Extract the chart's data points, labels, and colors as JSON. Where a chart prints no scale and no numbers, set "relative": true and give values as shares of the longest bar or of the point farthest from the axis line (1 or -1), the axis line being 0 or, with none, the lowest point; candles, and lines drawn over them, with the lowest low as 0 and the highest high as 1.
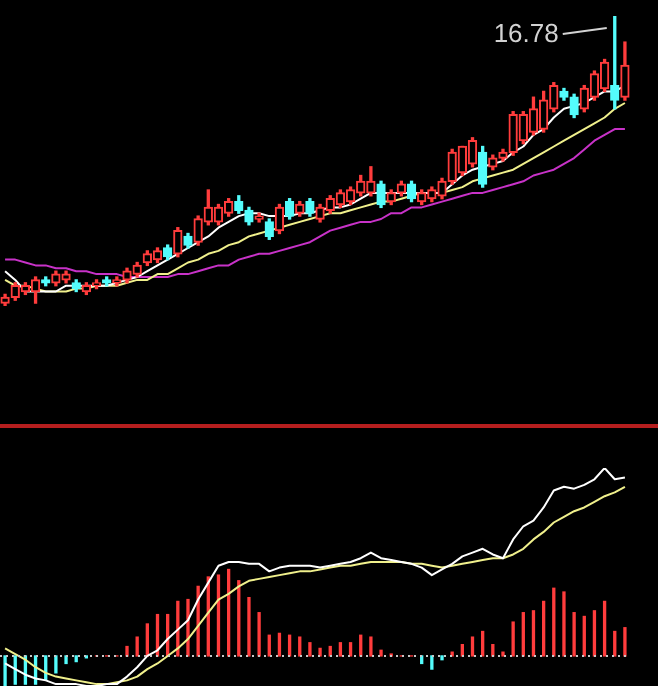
{
  "chart_data": [
    {
      "type": "candlestick",
      "relative": true,
      "categories": [
        null,
        null,
        null,
        null,
        null,
        null,
        null,
        null,
        null,
        null,
        null,
        null,
        null,
        null,
        null,
        null,
        null,
        null,
        null,
        null,
        null,
        null,
        null,
        null,
        null,
        null,
        null,
        null,
        null,
        null,
        null,
        null,
        null,
        null,
        null,
        null,
        null,
        null,
        null,
        null,
        null,
        null,
        null,
        null,
        null,
        null,
        null,
        null,
        null,
        null,
        null,
        null,
        null,
        null,
        null,
        null,
        null,
        null,
        null,
        null,
        null,
        null
      ],
      "ohlc": [
        [
          0.01,
          0.04,
          0,
          0.03
        ],
        [
          0.03,
          0.08,
          0.02,
          0.07
        ],
        [
          0.05,
          0.08,
          0.04,
          0.07
        ],
        [
          0.05,
          0.1,
          0.01,
          0.09
        ],
        [
          0.09,
          0.1,
          0.07,
          0.08
        ],
        [
          0.08,
          0.12,
          0.07,
          0.11
        ],
        [
          0.09,
          0.12,
          0.08,
          0.11
        ],
        [
          0.08,
          0.09,
          0.05,
          0.06
        ],
        [
          0.05,
          0.08,
          0.04,
          0.07
        ],
        [
          0.07,
          0.09,
          0.06,
          0.08
        ],
        [
          0.09,
          0.1,
          0.07,
          0.08
        ],
        [
          0.08,
          0.1,
          0.07,
          0.09
        ],
        [
          0.09,
          0.13,
          0.08,
          0.12
        ],
        [
          0.11,
          0.15,
          0.1,
          0.14
        ],
        [
          0.15,
          0.19,
          0.14,
          0.18
        ],
        [
          0.16,
          0.2,
          0.15,
          0.19
        ],
        [
          0.2,
          0.21,
          0.16,
          0.17
        ],
        [
          0.18,
          0.27,
          0.17,
          0.26
        ],
        [
          0.24,
          0.25,
          0.2,
          0.21
        ],
        [
          0.22,
          0.31,
          0.21,
          0.3
        ],
        [
          0.29,
          0.4,
          0.28,
          0.34
        ],
        [
          0.29,
          0.35,
          0.28,
          0.34
        ],
        [
          0.32,
          0.37,
          0.31,
          0.36
        ],
        [
          0.36,
          0.38,
          0.32,
          0.33
        ],
        [
          0.33,
          0.34,
          0.28,
          0.29
        ],
        [
          0.3,
          0.32,
          0.29,
          0.31
        ],
        [
          0.29,
          0.3,
          0.23,
          0.24
        ],
        [
          0.26,
          0.35,
          0.25,
          0.34
        ],
        [
          0.36,
          0.37,
          0.3,
          0.31
        ],
        [
          0.32,
          0.36,
          0.31,
          0.35
        ],
        [
          0.36,
          0.37,
          0.31,
          0.32
        ],
        [
          0.3,
          0.35,
          0.29,
          0.34
        ],
        [
          0.33,
          0.38,
          0.32,
          0.37
        ],
        [
          0.35,
          0.4,
          0.34,
          0.39
        ],
        [
          0.36,
          0.41,
          0.35,
          0.4
        ],
        [
          0.39,
          0.45,
          0.38,
          0.43
        ],
        [
          0.39,
          0.48,
          0.38,
          0.43
        ],
        [
          0.42,
          0.43,
          0.34,
          0.35
        ],
        [
          0.36,
          0.4,
          0.35,
          0.39
        ],
        [
          0.39,
          0.43,
          0.38,
          0.42
        ],
        [
          0.42,
          0.43,
          0.36,
          0.37
        ],
        [
          0.36,
          0.4,
          0.35,
          0.39
        ],
        [
          0.37,
          0.41,
          0.36,
          0.4
        ],
        [
          0.38,
          0.44,
          0.37,
          0.43
        ],
        [
          0.43,
          0.54,
          0.42,
          0.53
        ],
        [
          0.46,
          0.55,
          0.45,
          0.55
        ],
        [
          0.49,
          0.58,
          0.48,
          0.57
        ],
        [
          0.53,
          0.55,
          0.41,
          0.42
        ],
        [
          0.48,
          0.52,
          0.47,
          0.51
        ],
        [
          0.51,
          0.54,
          0.5,
          0.53
        ],
        [
          0.53,
          0.67,
          0.52,
          0.66
        ],
        [
          0.57,
          0.67,
          0.56,
          0.66
        ],
        [
          0.6,
          0.72,
          0.59,
          0.68
        ],
        [
          0.61,
          0.74,
          0.6,
          0.71
        ],
        [
          0.68,
          0.77,
          0.67,
          0.76
        ],
        [
          0.74,
          0.75,
          0.71,
          0.72
        ],
        [
          0.72,
          0.73,
          0.65,
          0.66
        ],
        [
          0.68,
          0.76,
          0.67,
          0.75
        ],
        [
          0.72,
          0.81,
          0.71,
          0.8
        ],
        [
          0.75,
          0.85,
          0.74,
          0.84
        ],
        [
          0.76,
          1,
          0.68,
          0.71
        ],
        [
          0.72,
          0.91,
          0.71,
          0.83
        ]
      ],
      "colors": [
        "#ff3c3c",
        "#ff3c3c",
        "#ff3c3c",
        "#ff3c3c",
        "#54fcfc",
        "#ff3c3c",
        "#ff3c3c",
        "#54fcfc",
        "#ff3c3c",
        "#ff3c3c",
        "#54fcfc",
        "#ff3c3c",
        "#ff3c3c",
        "#ff3c3c",
        "#ff3c3c",
        "#ff3c3c",
        "#54fcfc",
        "#ff3c3c",
        "#54fcfc",
        "#ff3c3c",
        "#ff3c3c",
        "#ff3c3c",
        "#ff3c3c",
        "#54fcfc",
        "#54fcfc",
        "#ff3c3c",
        "#54fcfc",
        "#ff3c3c",
        "#54fcfc",
        "#ff3c3c",
        "#54fcfc",
        "#ff3c3c",
        "#ff3c3c",
        "#ff3c3c",
        "#ff3c3c",
        "#ff3c3c",
        "#ff3c3c",
        "#54fcfc",
        "#ff3c3c",
        "#ff3c3c",
        "#54fcfc",
        "#ff3c3c",
        "#ff3c3c",
        "#ff3c3c",
        "#ff3c3c",
        "#ff3c3c",
        "#ff3c3c",
        "#54fcfc",
        "#ff3c3c",
        "#ff3c3c",
        "#ff3c3c",
        "#ff3c3c",
        "#ff3c3c",
        "#ff3c3c",
        "#ff3c3c",
        "#54fcfc",
        "#54fcfc",
        "#ff3c3c",
        "#ff3c3c",
        "#ff3c3c",
        "#54fcfc",
        "#ff3c3c"
      ],
      "series": [
        {
          "type": "line",
          "color": "#ffffff",
          "values": [
            0.12,
            0.09,
            0.05,
            0.05,
            0.05,
            0.05,
            0.07,
            0.07,
            0.07,
            0.07,
            0.07,
            0.08,
            0.09,
            0.1,
            0.12,
            0.14,
            0.16,
            0.18,
            0.2,
            0.22,
            0.24,
            0.27,
            0.29,
            0.31,
            0.32,
            0.32,
            0.31,
            0.31,
            0.31,
            0.32,
            0.32,
            0.33,
            0.34,
            0.34,
            0.35,
            0.37,
            0.39,
            0.39,
            0.39,
            0.39,
            0.39,
            0.39,
            0.39,
            0.39,
            0.42,
            0.45,
            0.47,
            0.48,
            0.49,
            0.5,
            0.53,
            0.55,
            0.59,
            0.61,
            0.65,
            0.68,
            0.69,
            0.7,
            0.72,
            0.74,
            0.74,
            0.76
          ]
        },
        {
          "type": "line",
          "color": "#f0f08c",
          "values": [
            0.09,
            0.07,
            0.07,
            0.06,
            0.05,
            0.05,
            0.05,
            0.06,
            0.06,
            0.07,
            0.07,
            0.07,
            0.08,
            0.09,
            0.09,
            0.11,
            0.11,
            0.13,
            0.15,
            0.16,
            0.18,
            0.19,
            0.21,
            0.22,
            0.24,
            0.25,
            0.26,
            0.27,
            0.28,
            0.29,
            0.3,
            0.31,
            0.32,
            0.32,
            0.33,
            0.34,
            0.35,
            0.36,
            0.36,
            0.37,
            0.38,
            0.39,
            0.39,
            0.39,
            0.4,
            0.41,
            0.43,
            0.44,
            0.45,
            0.46,
            0.47,
            0.49,
            0.51,
            0.53,
            0.55,
            0.57,
            0.59,
            0.61,
            0.63,
            0.65,
            0.68,
            0.7
          ]
        },
        {
          "type": "line",
          "color": "#c832c8",
          "values": [
            0.16,
            0.16,
            0.15,
            0.14,
            0.14,
            0.13,
            0.13,
            0.12,
            0.12,
            0.11,
            0.11,
            0.11,
            0.1,
            0.1,
            0.1,
            0.1,
            0.1,
            0.11,
            0.11,
            0.12,
            0.13,
            0.14,
            0.14,
            0.16,
            0.17,
            0.18,
            0.18,
            0.19,
            0.2,
            0.21,
            0.22,
            0.24,
            0.26,
            0.27,
            0.28,
            0.29,
            0.29,
            0.3,
            0.32,
            0.32,
            0.34,
            0.34,
            0.35,
            0.36,
            0.37,
            0.38,
            0.39,
            0.39,
            0.4,
            0.41,
            0.42,
            0.43,
            0.45,
            0.46,
            0.47,
            0.49,
            0.51,
            0.54,
            0.57,
            0.59,
            0.61,
            0.61
          ]
        }
      ],
      "annotations": [
        "16.78"
      ]
    },
    {
      "type": "bar",
      "relative": true,
      "categories": [
        null,
        null,
        null,
        null,
        null,
        null,
        null,
        null,
        null,
        null,
        null,
        null,
        null,
        null,
        null,
        null,
        null,
        null,
        null,
        null,
        null,
        null,
        null,
        null,
        null,
        null,
        null,
        null,
        null,
        null,
        null,
        null,
        null,
        null,
        null,
        null,
        null,
        null,
        null,
        null,
        null,
        null,
        null,
        null,
        null,
        null,
        null,
        null,
        null,
        null,
        null,
        null,
        null,
        null,
        null,
        null,
        null,
        null,
        null,
        null,
        null,
        null
      ],
      "series": [
        {
          "type": "bar",
          "values": [
            -0.16,
            -0.15,
            -0.15,
            -0.15,
            -0.13,
            -0.09,
            -0.04,
            -0.03,
            -0.01,
            0,
            0,
            0,
            0.05,
            0.1,
            0.17,
            0.22,
            0.22,
            0.29,
            0.3,
            0.37,
            0.42,
            0.43,
            0.46,
            0.4,
            0.31,
            0.23,
            0.11,
            0.12,
            0.11,
            0.1,
            0.07,
            0.04,
            0.05,
            0.07,
            0.07,
            0.11,
            0.1,
            0.03,
            0.01,
            0,
            0,
            -0.04,
            -0.07,
            -0.02,
            0.02,
            0.06,
            0.1,
            0.13,
            0.06,
            0.02,
            0.18,
            0.23,
            0.24,
            0.29,
            0.36,
            0.34,
            0.23,
            0.21,
            0.24,
            0.29,
            0.13,
            0.15
          ],
          "colors": [
            "#54fcfc",
            "#54fcfc",
            "#54fcfc",
            "#54fcfc",
            "#54fcfc",
            "#54fcfc",
            "#54fcfc",
            "#54fcfc",
            "#54fcfc",
            "#ff3c3c",
            "#ff3c3c",
            "#ff3c3c",
            "#ff3c3c",
            "#ff3c3c",
            "#ff3c3c",
            "#ff3c3c",
            "#ff3c3c",
            "#ff3c3c",
            "#ff3c3c",
            "#ff3c3c",
            "#ff3c3c",
            "#ff3c3c",
            "#ff3c3c",
            "#ff3c3c",
            "#ff3c3c",
            "#ff3c3c",
            "#ff3c3c",
            "#ff3c3c",
            "#ff3c3c",
            "#ff3c3c",
            "#ff3c3c",
            "#ff3c3c",
            "#ff3c3c",
            "#ff3c3c",
            "#ff3c3c",
            "#ff3c3c",
            "#ff3c3c",
            "#ff3c3c",
            "#ff3c3c",
            "#ff3c3c",
            "#ff3c3c",
            "#54fcfc",
            "#54fcfc",
            "#54fcfc",
            "#ff3c3c",
            "#ff3c3c",
            "#ff3c3c",
            "#ff3c3c",
            "#ff3c3c",
            "#ff3c3c",
            "#ff3c3c",
            "#ff3c3c",
            "#ff3c3c",
            "#ff3c3c",
            "#ff3c3c",
            "#ff3c3c",
            "#ff3c3c",
            "#ff3c3c",
            "#ff3c3c",
            "#ff3c3c",
            "#ff3c3c",
            "#ff3c3c"
          ]
        },
        {
          "type": "line",
          "color": "#ffffff",
          "values": [
            -0.04,
            -0.07,
            -0.1,
            -0.12,
            -0.13,
            -0.15,
            -0.15,
            -0.15,
            -0.16,
            -0.16,
            -0.15,
            -0.15,
            -0.11,
            -0.06,
            0,
            0.03,
            0.09,
            0.14,
            0.19,
            0.3,
            0.39,
            0.48,
            0.5,
            0.5,
            0.49,
            0.49,
            0.45,
            0.47,
            0.48,
            0.48,
            0.48,
            0.47,
            0.48,
            0.49,
            0.5,
            0.52,
            0.55,
            0.52,
            0.51,
            0.5,
            0.49,
            0.47,
            0.43,
            0.46,
            0.49,
            0.53,
            0.55,
            0.57,
            0.54,
            0.52,
            0.62,
            0.69,
            0.72,
            0.79,
            0.88,
            0.9,
            0.89,
            0.91,
            0.94,
            1,
            0.94,
            0.95
          ]
        },
        {
          "type": "line",
          "color": "#f0f08c",
          "values": [
            0.04,
            0.01,
            -0.02,
            -0.06,
            -0.09,
            -0.11,
            -0.12,
            -0.13,
            -0.14,
            -0.15,
            -0.15,
            -0.14,
            -0.13,
            -0.11,
            -0.07,
            -0.04,
            0,
            0.04,
            0.09,
            0.16,
            0.23,
            0.3,
            0.33,
            0.37,
            0.4,
            0.41,
            0.42,
            0.43,
            0.44,
            0.45,
            0.45,
            0.46,
            0.47,
            0.48,
            0.48,
            0.49,
            0.5,
            0.5,
            0.5,
            0.5,
            0.49,
            0.49,
            0.48,
            0.47,
            0.48,
            0.49,
            0.5,
            0.51,
            0.52,
            0.52,
            0.54,
            0.57,
            0.62,
            0.66,
            0.71,
            0.74,
            0.77,
            0.79,
            0.82,
            0.85,
            0.87,
            0.9
          ]
        }
      ],
      "ref_lines": [
        {
          "axis": "y",
          "value": 0,
          "color": "#c8c8c8",
          "line_style": "dotted"
        }
      ]
    }
  ]
}
